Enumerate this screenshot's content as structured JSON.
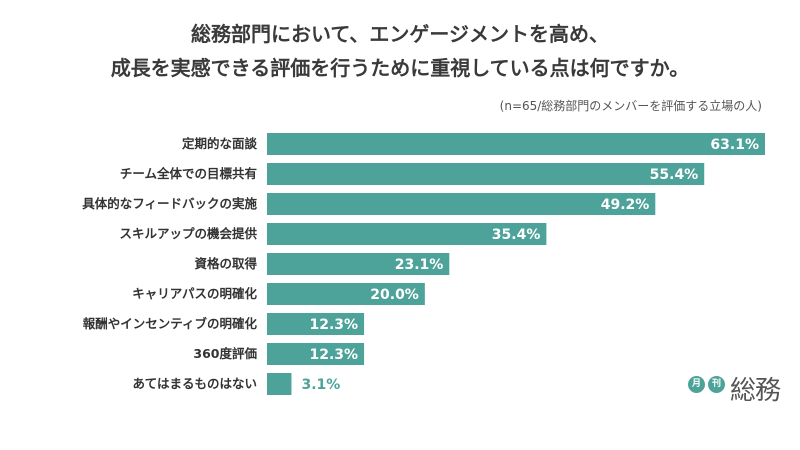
{
  "title": {
    "line1": "総務部門において、エンゲージメントを高め、",
    "line2": "成長を実感できる評価を行うために重視している点は何ですか。"
  },
  "note": "(n=65/総務部門のメンバーを評価する立場の人)",
  "logo": {
    "circle1": "月",
    "circle2": "刊",
    "word": "総務"
  },
  "colors": {
    "bar": "#4da399",
    "label_text": "#333333",
    "value_outside": "#4da399",
    "value_inside": "#ffffff"
  },
  "chart_data": {
    "type": "bar",
    "orientation": "horizontal",
    "categories": [
      "定期的な面談",
      "チーム全体での目標共有",
      "具体的なフィードバックの実施",
      "スキルアップの機会提供",
      "資格の取得",
      "キャリアパスの明確化",
      "報酬やインセンティブの明確化",
      "360度評価",
      "あてはまるものはない"
    ],
    "values": [
      63.1,
      55.4,
      49.2,
      35.4,
      23.1,
      20.0,
      12.3,
      12.3,
      3.1
    ],
    "value_labels": [
      "63.1%",
      "55.4%",
      "49.2%",
      "35.4%",
      "23.1%",
      "20.0%",
      "12.3%",
      "12.3%",
      "3.1%"
    ],
    "xlim": [
      0,
      63.1
    ],
    "grid": false,
    "legend": "none"
  }
}
